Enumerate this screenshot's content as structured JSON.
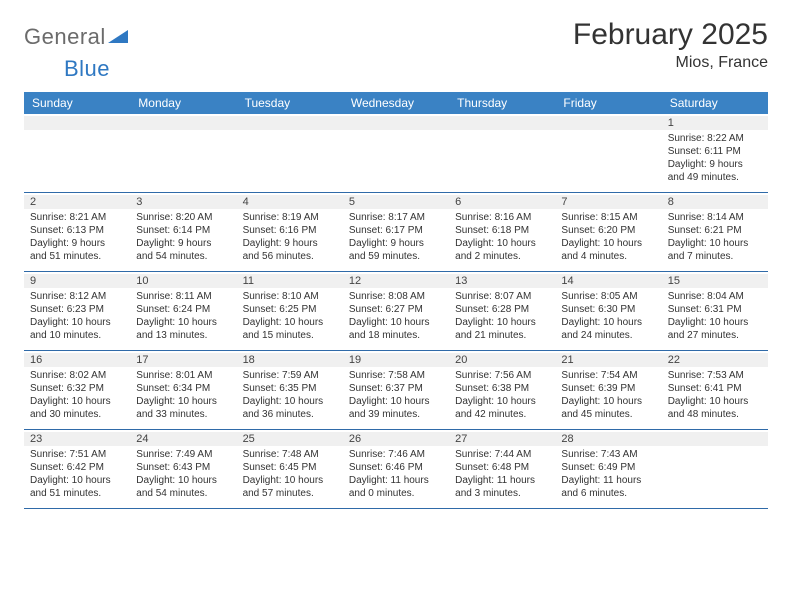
{
  "brand": {
    "part1": "General",
    "part2": "Blue"
  },
  "title": "February 2025",
  "location": "Mios, France",
  "colors": {
    "header_bg": "#3a82c4",
    "header_text": "#ffffff",
    "row_divider": "#2f6aa8",
    "daynum_bg": "#f0f0f0",
    "body_text": "#333333",
    "logo_gray": "#6b6b6b",
    "logo_blue": "#2f78c2"
  },
  "weekdays": [
    "Sunday",
    "Monday",
    "Tuesday",
    "Wednesday",
    "Thursday",
    "Friday",
    "Saturday"
  ],
  "weeks": [
    [
      {
        "day": "",
        "lines": []
      },
      {
        "day": "",
        "lines": []
      },
      {
        "day": "",
        "lines": []
      },
      {
        "day": "",
        "lines": []
      },
      {
        "day": "",
        "lines": []
      },
      {
        "day": "",
        "lines": []
      },
      {
        "day": "1",
        "lines": [
          "Sunrise: 8:22 AM",
          "Sunset: 6:11 PM",
          "Daylight: 9 hours and 49 minutes."
        ]
      }
    ],
    [
      {
        "day": "2",
        "lines": [
          "Sunrise: 8:21 AM",
          "Sunset: 6:13 PM",
          "Daylight: 9 hours and 51 minutes."
        ]
      },
      {
        "day": "3",
        "lines": [
          "Sunrise: 8:20 AM",
          "Sunset: 6:14 PM",
          "Daylight: 9 hours and 54 minutes."
        ]
      },
      {
        "day": "4",
        "lines": [
          "Sunrise: 8:19 AM",
          "Sunset: 6:16 PM",
          "Daylight: 9 hours and 56 minutes."
        ]
      },
      {
        "day": "5",
        "lines": [
          "Sunrise: 8:17 AM",
          "Sunset: 6:17 PM",
          "Daylight: 9 hours and 59 minutes."
        ]
      },
      {
        "day": "6",
        "lines": [
          "Sunrise: 8:16 AM",
          "Sunset: 6:18 PM",
          "Daylight: 10 hours and 2 minutes."
        ]
      },
      {
        "day": "7",
        "lines": [
          "Sunrise: 8:15 AM",
          "Sunset: 6:20 PM",
          "Daylight: 10 hours and 4 minutes."
        ]
      },
      {
        "day": "8",
        "lines": [
          "Sunrise: 8:14 AM",
          "Sunset: 6:21 PM",
          "Daylight: 10 hours and 7 minutes."
        ]
      }
    ],
    [
      {
        "day": "9",
        "lines": [
          "Sunrise: 8:12 AM",
          "Sunset: 6:23 PM",
          "Daylight: 10 hours and 10 minutes."
        ]
      },
      {
        "day": "10",
        "lines": [
          "Sunrise: 8:11 AM",
          "Sunset: 6:24 PM",
          "Daylight: 10 hours and 13 minutes."
        ]
      },
      {
        "day": "11",
        "lines": [
          "Sunrise: 8:10 AM",
          "Sunset: 6:25 PM",
          "Daylight: 10 hours and 15 minutes."
        ]
      },
      {
        "day": "12",
        "lines": [
          "Sunrise: 8:08 AM",
          "Sunset: 6:27 PM",
          "Daylight: 10 hours and 18 minutes."
        ]
      },
      {
        "day": "13",
        "lines": [
          "Sunrise: 8:07 AM",
          "Sunset: 6:28 PM",
          "Daylight: 10 hours and 21 minutes."
        ]
      },
      {
        "day": "14",
        "lines": [
          "Sunrise: 8:05 AM",
          "Sunset: 6:30 PM",
          "Daylight: 10 hours and 24 minutes."
        ]
      },
      {
        "day": "15",
        "lines": [
          "Sunrise: 8:04 AM",
          "Sunset: 6:31 PM",
          "Daylight: 10 hours and 27 minutes."
        ]
      }
    ],
    [
      {
        "day": "16",
        "lines": [
          "Sunrise: 8:02 AM",
          "Sunset: 6:32 PM",
          "Daylight: 10 hours and 30 minutes."
        ]
      },
      {
        "day": "17",
        "lines": [
          "Sunrise: 8:01 AM",
          "Sunset: 6:34 PM",
          "Daylight: 10 hours and 33 minutes."
        ]
      },
      {
        "day": "18",
        "lines": [
          "Sunrise: 7:59 AM",
          "Sunset: 6:35 PM",
          "Daylight: 10 hours and 36 minutes."
        ]
      },
      {
        "day": "19",
        "lines": [
          "Sunrise: 7:58 AM",
          "Sunset: 6:37 PM",
          "Daylight: 10 hours and 39 minutes."
        ]
      },
      {
        "day": "20",
        "lines": [
          "Sunrise: 7:56 AM",
          "Sunset: 6:38 PM",
          "Daylight: 10 hours and 42 minutes."
        ]
      },
      {
        "day": "21",
        "lines": [
          "Sunrise: 7:54 AM",
          "Sunset: 6:39 PM",
          "Daylight: 10 hours and 45 minutes."
        ]
      },
      {
        "day": "22",
        "lines": [
          "Sunrise: 7:53 AM",
          "Sunset: 6:41 PM",
          "Daylight: 10 hours and 48 minutes."
        ]
      }
    ],
    [
      {
        "day": "23",
        "lines": [
          "Sunrise: 7:51 AM",
          "Sunset: 6:42 PM",
          "Daylight: 10 hours and 51 minutes."
        ]
      },
      {
        "day": "24",
        "lines": [
          "Sunrise: 7:49 AM",
          "Sunset: 6:43 PM",
          "Daylight: 10 hours and 54 minutes."
        ]
      },
      {
        "day": "25",
        "lines": [
          "Sunrise: 7:48 AM",
          "Sunset: 6:45 PM",
          "Daylight: 10 hours and 57 minutes."
        ]
      },
      {
        "day": "26",
        "lines": [
          "Sunrise: 7:46 AM",
          "Sunset: 6:46 PM",
          "Daylight: 11 hours and 0 minutes."
        ]
      },
      {
        "day": "27",
        "lines": [
          "Sunrise: 7:44 AM",
          "Sunset: 6:48 PM",
          "Daylight: 11 hours and 3 minutes."
        ]
      },
      {
        "day": "28",
        "lines": [
          "Sunrise: 7:43 AM",
          "Sunset: 6:49 PM",
          "Daylight: 11 hours and 6 minutes."
        ]
      },
      {
        "day": "",
        "lines": []
      }
    ]
  ]
}
